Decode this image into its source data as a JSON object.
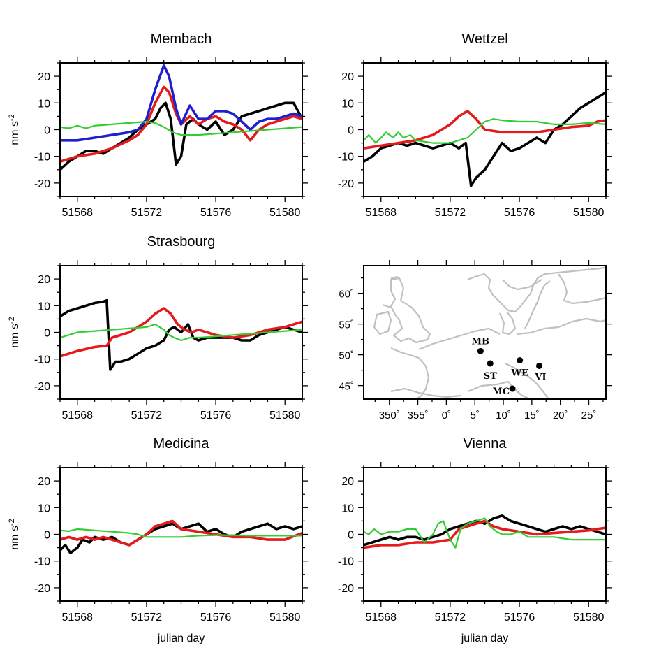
{
  "figure": {
    "xlabel": "julian day"
  },
  "chart_data": [
    {
      "type": "line",
      "title": "Membach",
      "xlabel": "",
      "ylabel": "nm s-2",
      "ylabel_main": "nm s",
      "ylabel_exp": "-2",
      "xlim": [
        51567,
        51581
      ],
      "ylim": [
        -25,
        25
      ],
      "xticks": [
        51568,
        51572,
        51576,
        51580
      ],
      "yticks": [
        -20,
        -10,
        0,
        10,
        20
      ],
      "series": [
        {
          "name": "black",
          "color": "#000000",
          "x": [
            51567,
            51567.5,
            51568,
            51568.5,
            51569,
            51569.5,
            51570,
            51570.5,
            51571,
            51571.5,
            51572,
            51572.5,
            51572.8,
            51573.1,
            51573.4,
            51573.7,
            51574,
            51574.3,
            51574.7,
            51575,
            51575.5,
            51576,
            51576.5,
            51577,
            51577.5,
            51578,
            51578.5,
            51579,
            51579.5,
            51580,
            51580.5,
            51581
          ],
          "y": [
            -15,
            -12,
            -10,
            -8,
            -8,
            -9,
            -7,
            -5,
            -3,
            0,
            2,
            4,
            8,
            10,
            4,
            -13,
            -10,
            2,
            4,
            2,
            0,
            3,
            -2,
            0,
            5,
            6,
            7,
            8,
            9,
            10,
            10,
            4
          ]
        },
        {
          "name": "red",
          "color": "#e41a1c",
          "x": [
            51567,
            51568,
            51569,
            51570,
            51571,
            51571.5,
            51572,
            51572.5,
            51573,
            51573.3,
            51573.7,
            51574,
            51574.5,
            51575,
            51575.5,
            51576,
            51576.5,
            51577,
            51577.5,
            51578,
            51578.5,
            51579,
            51579.5,
            51580,
            51580.5,
            51581
          ],
          "y": [
            -12,
            -10,
            -9,
            -7,
            -4,
            -2,
            2,
            10,
            16,
            14,
            6,
            2,
            5,
            2,
            4,
            5,
            3,
            2,
            0,
            -4,
            0,
            2,
            3,
            4,
            5,
            4
          ]
        },
        {
          "name": "blue",
          "color": "#1f1fd0",
          "x": [
            51567,
            51568,
            51569,
            51570,
            51571,
            51571.5,
            51572,
            51572.5,
            51573,
            51573.3,
            51573.7,
            51574,
            51574.5,
            51575,
            51575.5,
            51576,
            51576.5,
            51577,
            51577.5,
            51578,
            51578.5,
            51579,
            51579.5,
            51580,
            51580.5,
            51581
          ],
          "y": [
            -4,
            -4,
            -3,
            -2,
            -1,
            0,
            4,
            15,
            24,
            20,
            8,
            2,
            9,
            4,
            4,
            7,
            7,
            6,
            3,
            0,
            3,
            4,
            4,
            5,
            6,
            5
          ]
        },
        {
          "name": "green",
          "color": "#33cc33",
          "x": [
            51567,
            51567.5,
            51568,
            51568.5,
            51569,
            51570,
            51571,
            51572,
            51572.5,
            51573,
            51573.5,
            51574,
            51575,
            51576,
            51577,
            51578,
            51579,
            51580,
            51581
          ],
          "y": [
            1,
            0.5,
            1.5,
            0.5,
            1.5,
            2,
            2.5,
            3,
            2.5,
            1,
            -1,
            -2,
            -2,
            -1.5,
            -1,
            -0.5,
            0,
            0.5,
            1
          ]
        }
      ]
    },
    {
      "type": "line",
      "title": "Wettzel",
      "xlabel": "",
      "ylabel": "",
      "xlim": [
        51567,
        51581
      ],
      "ylim": [
        -25,
        25
      ],
      "xticks": [
        51568,
        51572,
        51576,
        51580
      ],
      "yticks": [
        -20,
        -10,
        0,
        10,
        20
      ],
      "series": [
        {
          "name": "black",
          "color": "#000000",
          "x": [
            51567,
            51567.5,
            51568,
            51568.5,
            51569,
            51569.5,
            51570,
            51570.5,
            51571,
            51571.5,
            51572,
            51572.5,
            51572.9,
            51573.2,
            51573.5,
            51574,
            51574.5,
            51575,
            51575.5,
            51576,
            51576.5,
            51577,
            51577.5,
            51578,
            51578.5,
            51579,
            51579.5,
            51580,
            51580.5,
            51581
          ],
          "y": [
            -12,
            -10,
            -7,
            -6,
            -5,
            -6,
            -5,
            -6,
            -7,
            -6,
            -5,
            -7,
            -5,
            -21,
            -18,
            -15,
            -10,
            -5,
            -8,
            -7,
            -5,
            -3,
            -5,
            0,
            2,
            5,
            8,
            10,
            12,
            14
          ]
        },
        {
          "name": "red",
          "color": "#e41a1c",
          "x": [
            51567,
            51568,
            51569,
            51570,
            51571,
            51572,
            51572.5,
            51573,
            51573.5,
            51574,
            51575,
            51576,
            51577,
            51578,
            51579,
            51580,
            51580.5,
            51581
          ],
          "y": [
            -7,
            -6,
            -5,
            -4,
            -2,
            2,
            5,
            7,
            4,
            0,
            -1,
            -1,
            -1,
            0,
            1,
            1.5,
            3,
            3.5
          ]
        },
        {
          "name": "green",
          "color": "#33cc33",
          "x": [
            51567,
            51567.3,
            51567.7,
            51568,
            51568.3,
            51568.7,
            51569,
            51569.3,
            51569.7,
            51570,
            51571,
            51572,
            51573,
            51573.5,
            51574,
            51574.5,
            51575,
            51576,
            51577,
            51578,
            51579,
            51580,
            51581
          ],
          "y": [
            -4,
            -2,
            -5,
            -3,
            -1,
            -3,
            -1,
            -3,
            -2,
            -4,
            -5,
            -5,
            -3,
            0,
            3,
            4,
            3.5,
            3,
            3,
            2,
            2,
            2.5,
            2
          ]
        }
      ]
    },
    {
      "type": "line",
      "title": "Strasbourg",
      "xlabel": "",
      "ylabel": "nm s-2",
      "ylabel_main": "nm s",
      "ylabel_exp": "-2",
      "xlim": [
        51567,
        51581
      ],
      "ylim": [
        -25,
        25
      ],
      "xticks": [
        51568,
        51572,
        51576,
        51580
      ],
      "yticks": [
        -20,
        -10,
        0,
        10,
        20
      ],
      "series": [
        {
          "name": "black",
          "color": "#000000",
          "x": [
            51567,
            51567.5,
            51568,
            51568.5,
            51569,
            51569.5,
            51569.7,
            51569.9,
            51570.2,
            51570.5,
            51571,
            51571.5,
            51572,
            51572.5,
            51573,
            51573.3,
            51573.6,
            51574,
            51574.4,
            51574.7,
            51575,
            51575.5,
            51576,
            51576.5,
            51577,
            51577.5,
            51578,
            51578.5,
            51579,
            51579.5,
            51580,
            51580.5,
            51581
          ],
          "y": [
            6,
            8,
            9,
            10,
            11,
            11.5,
            12,
            -14,
            -11,
            -11,
            -10,
            -8,
            -6,
            -5,
            -3,
            1,
            2,
            0,
            3,
            -2,
            -3,
            -2,
            -2,
            -2,
            -2,
            -3,
            -3,
            -1,
            0,
            1,
            2,
            1,
            0
          ]
        },
        {
          "name": "red",
          "color": "#e41a1c",
          "x": [
            51567,
            51568,
            51569,
            51569.7,
            51570,
            51571,
            51572,
            51572.5,
            51573,
            51573.4,
            51573.8,
            51574.2,
            51574.6,
            51575,
            51575.5,
            51576,
            51577,
            51578,
            51579,
            51580,
            51580.5,
            51581
          ],
          "y": [
            -9,
            -7,
            -5.5,
            -5,
            -2,
            0,
            4,
            7,
            9,
            7,
            3,
            1,
            0,
            1,
            0,
            -1,
            -2,
            -1,
            1,
            2,
            3,
            4
          ]
        },
        {
          "name": "green",
          "color": "#33cc33",
          "x": [
            51567,
            51567.5,
            51568,
            51569,
            51570,
            51571,
            51572,
            51572.5,
            51573,
            51573.3,
            51573.6,
            51574,
            51574.5,
            51575,
            51576,
            51577,
            51578,
            51579,
            51580,
            51581
          ],
          "y": [
            -2,
            -1,
            0,
            0.5,
            1,
            1.5,
            2,
            3,
            1,
            -1,
            -2,
            -3,
            -2,
            -2,
            -1.5,
            -1,
            -0.5,
            0,
            0.5,
            1
          ]
        }
      ]
    },
    {
      "type": "map",
      "title": "",
      "xticks": [
        "350˚",
        "355˚",
        "0˚",
        "5˚",
        "10˚",
        "15˚",
        "20˚",
        "25˚"
      ],
      "yticks": [
        "60˚",
        "55˚",
        "50˚",
        "45˚"
      ],
      "lon_values": [
        350,
        355,
        360,
        365,
        370,
        375,
        380,
        385
      ],
      "lat_values": [
        60,
        55,
        50,
        45
      ],
      "xlim": [
        345.5,
        388
      ],
      "ylim": [
        42.8,
        64.5
      ],
      "stations": [
        {
          "code": "MB",
          "lon": 6.0,
          "lat": 50.6
        },
        {
          "code": "ST",
          "lon": 7.7,
          "lat": 48.6
        },
        {
          "code": "WE",
          "lon": 12.9,
          "lat": 49.1
        },
        {
          "code": "MC",
          "lon": 11.6,
          "lat": 44.5
        },
        {
          "code": "VI",
          "lon": 16.3,
          "lat": 48.2
        }
      ]
    },
    {
      "type": "line",
      "title": "Medicina",
      "xlabel": "julian day",
      "ylabel": "nm s-2",
      "ylabel_main": "nm s",
      "ylabel_exp": "-2",
      "xlim": [
        51567,
        51581
      ],
      "ylim": [
        -25,
        25
      ],
      "xticks": [
        51568,
        51572,
        51576,
        51580
      ],
      "yticks": [
        -20,
        -10,
        0,
        10,
        20
      ],
      "series": [
        {
          "name": "black",
          "color": "#000000",
          "x": [
            51567,
            51567.3,
            51567.6,
            51568,
            51568.3,
            51568.7,
            51569,
            51569.5,
            51570,
            51570.5,
            51571,
            51571.5,
            51572,
            51572.5,
            51573,
            51573.5,
            51574,
            51574.5,
            51575,
            51575.5,
            51576,
            51576.5,
            51577,
            51577.5,
            51578,
            51578.5,
            51579,
            51579.5,
            51580,
            51580.5,
            51581
          ],
          "y": [
            -6,
            -4,
            -7,
            -5,
            -2,
            -3,
            -1,
            -2,
            -1,
            -3,
            -4,
            -2,
            0,
            2,
            3,
            4,
            2,
            3,
            4,
            1,
            2,
            0,
            -1,
            1,
            2,
            3,
            4,
            2,
            3,
            2,
            3
          ]
        },
        {
          "name": "red",
          "color": "#e41a1c",
          "x": [
            51567,
            51567.5,
            51568,
            51568.5,
            51569,
            51569.5,
            51570,
            51570.5,
            51571,
            51571.5,
            51572,
            51572.5,
            51573,
            51573.5,
            51574,
            51575,
            51576,
            51577,
            51578,
            51579,
            51580,
            51581
          ],
          "y": [
            -2,
            -1,
            -2,
            -1,
            -2,
            -1,
            -2,
            -3,
            -4,
            -2,
            0,
            3,
            4,
            5,
            2,
            1,
            0,
            -1,
            -1,
            -2,
            -2,
            0.5
          ]
        },
        {
          "name": "green",
          "color": "#33cc33",
          "x": [
            51567,
            51567.5,
            51568,
            51569,
            51570,
            51571,
            51571.5,
            51572,
            51573,
            51574,
            51575,
            51576,
            51577,
            51578,
            51579,
            51580,
            51581
          ],
          "y": [
            1.5,
            1.2,
            2,
            1.5,
            1,
            0.5,
            0,
            -1,
            -1,
            -1,
            -0.5,
            -0.3,
            -0.3,
            -0.5,
            -0.5,
            -0.5,
            -0.5
          ]
        }
      ]
    },
    {
      "type": "line",
      "title": "Vienna",
      "xlabel": "julian day",
      "ylabel": "",
      "xlim": [
        51567,
        51581
      ],
      "ylim": [
        -25,
        25
      ],
      "xticks": [
        51568,
        51572,
        51576,
        51580
      ],
      "yticks": [
        -20,
        -10,
        0,
        10,
        20
      ],
      "series": [
        {
          "name": "black",
          "color": "#000000",
          "x": [
            51567,
            51567.5,
            51568,
            51568.5,
            51569,
            51569.5,
            51570,
            51570.5,
            51571,
            51571.5,
            51572,
            51572.5,
            51573,
            51573.5,
            51574,
            51574.5,
            51575,
            51575.5,
            51576,
            51576.5,
            51577,
            51577.5,
            51578,
            51578.5,
            51579,
            51579.5,
            51580,
            51580.5,
            51581
          ],
          "y": [
            -4,
            -3,
            -2,
            -1,
            -2,
            -1,
            -1,
            -2,
            -1,
            0,
            2,
            3,
            4,
            5,
            4,
            6,
            7,
            5,
            4,
            3,
            2,
            1,
            2,
            3,
            2,
            3,
            2,
            1,
            0
          ]
        },
        {
          "name": "red",
          "color": "#e41a1c",
          "x": [
            51567,
            51568,
            51569,
            51570,
            51571,
            51572,
            51572.5,
            51573,
            51573.5,
            51574,
            51574.5,
            51575,
            51576,
            51577,
            51578,
            51579,
            51580,
            51581
          ],
          "y": [
            -5,
            -4,
            -4,
            -3,
            -3,
            -2,
            2,
            3,
            4,
            5,
            3,
            2,
            1,
            0,
            0.5,
            1,
            1.5,
            2.5
          ]
        },
        {
          "name": "green",
          "color": "#33cc33",
          "x": [
            51567,
            51567.3,
            51567.6,
            51568,
            51568.5,
            51569,
            51569.5,
            51570,
            51570.5,
            51571,
            51571.3,
            51571.6,
            51572,
            51572.3,
            51572.6,
            51573,
            51573.5,
            51574,
            51574.3,
            51574.7,
            51575,
            51575.5,
            51576,
            51576.5,
            51577,
            51578,
            51579,
            51580,
            51581
          ],
          "y": [
            1,
            0,
            2,
            0,
            1,
            1,
            2,
            2,
            -3,
            0,
            4,
            5,
            -2,
            -5,
            2,
            4,
            5,
            6,
            3,
            1,
            0,
            0,
            1,
            -1,
            -1,
            -1,
            -2,
            -2,
            -2
          ]
        }
      ]
    }
  ]
}
